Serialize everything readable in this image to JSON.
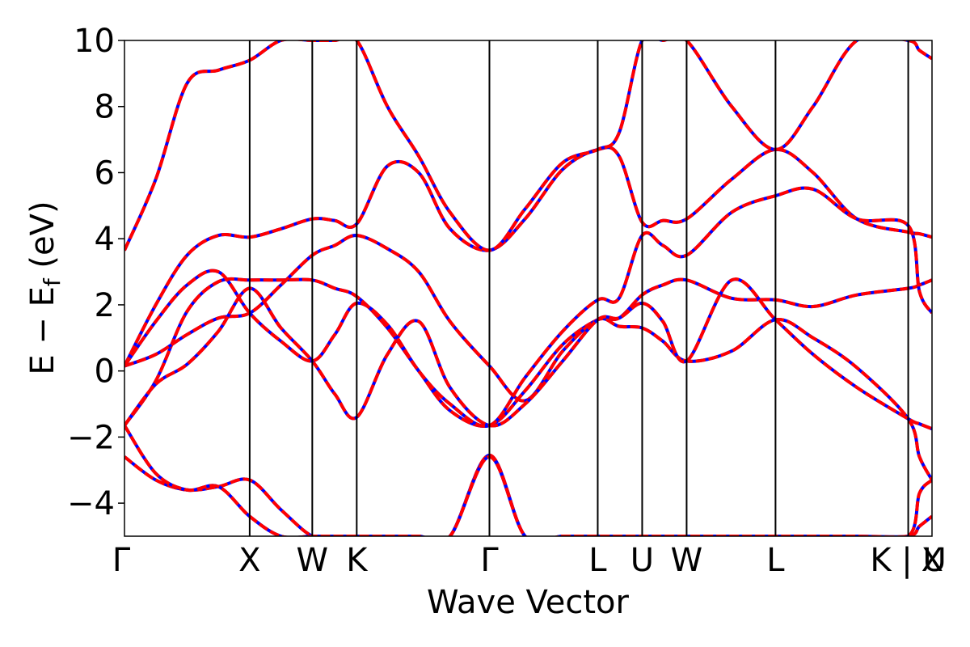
{
  "chart_data": {
    "type": "line",
    "title": "",
    "xlabel": "Wave Vector",
    "ylabel": "E − E",
    "ylabel_subscript": "f",
    "ylabel_unit": " (eV)",
    "ylim": [
      -5,
      10
    ],
    "xlim": [
      0,
      6.45
    ],
    "yticks": [
      -4,
      -2,
      0,
      2,
      4,
      6,
      8,
      10
    ],
    "ytick_labels": [
      "−4",
      "−2",
      "0",
      "2",
      "4",
      "6",
      "8",
      "10"
    ],
    "grid": false,
    "legend": "none",
    "kpoints": [
      {
        "label": "Γ",
        "x": 0.0
      },
      {
        "label": "X",
        "x": 1.0
      },
      {
        "label": "W",
        "x": 1.5
      },
      {
        "label": "K",
        "x": 1.855
      },
      {
        "label": "Γ",
        "x": 2.915
      },
      {
        "label": "L",
        "x": 3.78
      },
      {
        "label": "U",
        "x": 4.135
      },
      {
        "label": "W",
        "x": 4.49
      },
      {
        "label": "L",
        "x": 5.2
      },
      {
        "label": "K | U",
        "x": 6.26
      },
      {
        "label": "X",
        "x": 6.45
      }
    ],
    "colors": {
      "band_solid": "#0000ff",
      "band_dashed": "#ff0000",
      "frame": "#000000"
    },
    "x": [
      0.0,
      0.25,
      0.5,
      0.75,
      1.0,
      1.25,
      1.5,
      1.68,
      1.855,
      2.1,
      2.35,
      2.6,
      2.915,
      3.2,
      3.5,
      3.78,
      3.95,
      4.135,
      4.3,
      4.49,
      4.85,
      5.2,
      5.5,
      5.85,
      6.26,
      6.35,
      6.45
    ],
    "series": [
      {
        "values": [
          -2.6,
          -3.3,
          -3.6,
          -3.5,
          -3.3,
          -4.2,
          -5.0,
          -5.0,
          -5.0,
          -5.0,
          -5.0,
          -5.0,
          -2.55,
          -5.0,
          -5.0,
          -5.0,
          -5.0,
          -5.0,
          -5.0,
          -5.0,
          -5.0,
          -5.0,
          -5.0,
          -5.0,
          -5.0,
          -4.7,
          -4.4
        ]
      },
      {
        "values": [
          -1.65,
          -3.1,
          -3.6,
          -3.5,
          -4.4,
          -5.0,
          -5.0,
          -5.0,
          -5.0,
          -5.0,
          -5.0,
          -5.0,
          -2.6,
          -5.0,
          -5.0,
          -5.0,
          -5.0,
          -5.0,
          -5.0,
          -5.0,
          -5.0,
          -5.0,
          -5.0,
          -5.0,
          -5.0,
          -3.7,
          -3.3
        ]
      },
      {
        "values": [
          -1.65,
          -0.3,
          1.8,
          2.7,
          2.75,
          2.75,
          2.75,
          2.5,
          2.25,
          1.3,
          0.0,
          -1.2,
          -1.65,
          -0.6,
          0.8,
          1.55,
          1.6,
          2.3,
          2.6,
          2.75,
          2.2,
          2.15,
          1.95,
          2.3,
          2.5,
          2.6,
          2.75
        ]
      },
      {
        "values": [
          0.15,
          0.5,
          1.1,
          1.6,
          1.75,
          2.6,
          3.5,
          3.8,
          4.1,
          3.7,
          3.0,
          1.5,
          0.15,
          -0.9,
          0.6,
          1.55,
          1.35,
          1.3,
          0.9,
          0.3,
          0.6,
          1.55,
          1.0,
          0.1,
          -1.45,
          -2.6,
          -3.3
        ]
      },
      {
        "values": [
          0.15,
          2.0,
          3.5,
          4.1,
          4.05,
          4.3,
          4.6,
          4.55,
          4.45,
          6.2,
          6.0,
          4.3,
          3.65,
          4.6,
          6.1,
          6.7,
          6.5,
          4.5,
          4.55,
          4.6,
          5.8,
          6.7,
          6.0,
          4.6,
          4.2,
          4.15,
          4.05
        ]
      },
      {
        "values": [
          3.65,
          5.8,
          8.7,
          9.1,
          9.4,
          10.0,
          10.0,
          10.0,
          10.0,
          8.0,
          6.5,
          4.8,
          3.65,
          4.9,
          6.3,
          6.7,
          7.2,
          10.0,
          10.0,
          10.0,
          8.0,
          6.7,
          8.0,
          10.0,
          10.0,
          9.7,
          9.45
        ]
      },
      {
        "values": [
          -1.65,
          -0.4,
          0.2,
          1.2,
          2.5,
          1.3,
          0.3,
          -0.7,
          -1.4,
          0.5,
          1.5,
          -0.5,
          -1.65,
          -1.0,
          0.3,
          1.55,
          1.6,
          2.05,
          1.5,
          0.3,
          2.75,
          1.55,
          0.5,
          -0.5,
          -1.45,
          -1.6,
          -1.75
        ]
      },
      {
        "values": [
          0.15,
          1.5,
          2.6,
          3.0,
          1.75,
          0.9,
          0.3,
          1.1,
          2.05,
          1.4,
          0.0,
          -1.0,
          -1.65,
          -0.2,
          1.2,
          2.15,
          2.2,
          4.1,
          3.8,
          3.5,
          4.8,
          5.3,
          5.5,
          4.6,
          4.4,
          2.4,
          1.75
        ]
      }
    ]
  }
}
